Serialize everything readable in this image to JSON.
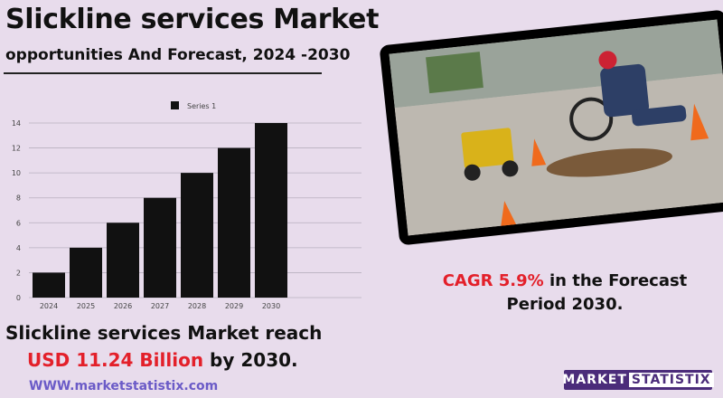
{
  "header": {
    "title": "Slickline services Market",
    "subtitle": "opportunities And Forecast, 2024 -2030"
  },
  "cagr": {
    "prefix": "CAGR",
    "value": "5.9%",
    "suffix": "in the  Forecast",
    "line2": "Period  2030."
  },
  "market": {
    "line1": "Slickline services Market  reach",
    "amount": "USD  11.24 Billion",
    "suffix": "by 2030."
  },
  "website": "WWW.marketstatistix.com",
  "logo_text": "MARKET STATISTIX",
  "colors": {
    "accent": "#e3202a",
    "bar": "#111111",
    "background": "#e8dcec",
    "logo_bg": "#4b2c7a",
    "link": "#6b5bc7"
  },
  "chart_data": {
    "type": "bar",
    "categories": [
      "2024",
      "2025",
      "2026",
      "2027",
      "2028",
      "2029",
      "2030"
    ],
    "series": [
      {
        "name": "Series 1",
        "values": [
          2,
          4,
          6,
          8,
          10,
          12,
          14
        ]
      }
    ],
    "ylim": [
      0,
      14
    ],
    "yticks": [
      0,
      2,
      4,
      6,
      8,
      10,
      12,
      14
    ],
    "grid": true,
    "legend": "top"
  }
}
